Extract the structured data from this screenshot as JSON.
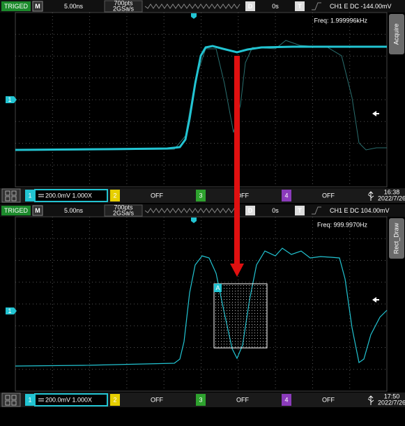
{
  "screens": [
    {
      "status": {
        "trigger_state": "TRIGED",
        "mode": "M",
        "timebase": "5.00ns",
        "memory_depth": "700pts",
        "sample_rate": "2GSa/s",
        "delay_label": "D",
        "delay": "0s",
        "trigger_label": "T",
        "trigger_info": "CH1 E DC -144.00mV"
      },
      "frequency": "Freq: 1.999996kHz",
      "menu_tab": "Acquire",
      "channel_marker": "1",
      "channels": [
        {
          "number": "1",
          "setting": "200.0mV 1.000X"
        },
        {
          "number": "2",
          "setting": "OFF"
        },
        {
          "number": "3",
          "setting": "OFF"
        },
        {
          "number": "4",
          "setting": "OFF"
        }
      ],
      "clock": {
        "time": "16:38",
        "date": "2022/7/26"
      }
    },
    {
      "status": {
        "trigger_state": "TRIGED",
        "mode": "M",
        "timebase": "5.00ns",
        "memory_depth": "700pts",
        "sample_rate": "2GSa/s",
        "delay_label": "D",
        "delay": "0s",
        "trigger_label": "T",
        "trigger_info": "CH1 E DC 104.00mV"
      },
      "frequency": "Freq: 999.9970Hz",
      "menu_tab": "Rect_Draw",
      "channel_marker": "1",
      "channels": [
        {
          "number": "1",
          "setting": "200.0mV 1.000X"
        },
        {
          "number": "2",
          "setting": "OFF"
        },
        {
          "number": "3",
          "setting": "OFF"
        },
        {
          "number": "4",
          "setting": "OFF"
        }
      ],
      "clock": {
        "time": "17:50",
        "date": "2022/7/26"
      }
    }
  ],
  "rect_label": "A"
}
